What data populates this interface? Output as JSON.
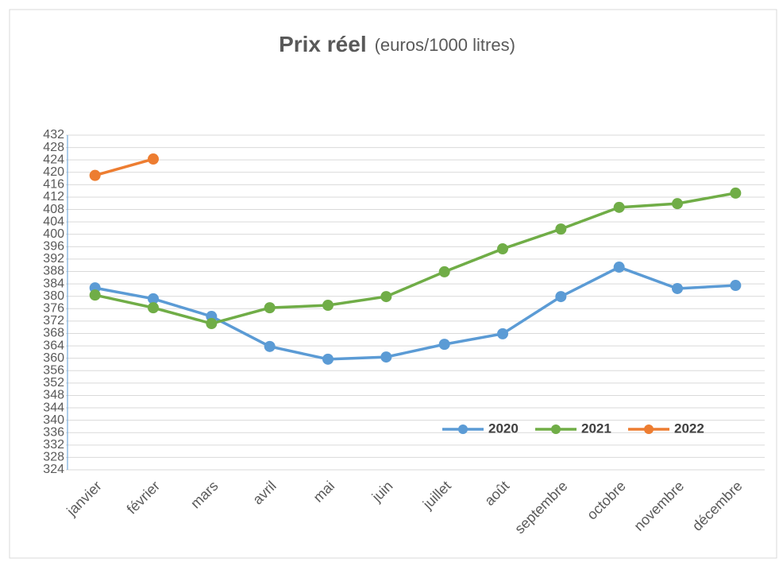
{
  "chart_data": {
    "type": "line",
    "title": "Prix réel",
    "subtitle": "(euros/1000 litres)",
    "categories": [
      "janvier",
      "février",
      "mars",
      "avril",
      "mai",
      "juin",
      "juillet",
      "août",
      "septembre",
      "octobre",
      "novembre",
      "décembre"
    ],
    "series": [
      {
        "name": "2020",
        "color": "#5b9bd5",
        "values": [
          382.7,
          379.2,
          373.5,
          363.8,
          359.7,
          360.4,
          364.5,
          367.9,
          379.9,
          389.4,
          382.5,
          383.5
        ]
      },
      {
        "name": "2021",
        "color": "#70ad47",
        "values": [
          380.4,
          376.3,
          371.2,
          376.3,
          377.1,
          379.9,
          387.9,
          395.3,
          401.7,
          408.7,
          409.9,
          413.3
        ]
      },
      {
        "name": "2022",
        "color": "#ed7d31",
        "values": [
          419,
          424.3,
          null,
          null,
          null,
          null,
          null,
          null,
          null,
          null,
          null,
          null
        ]
      }
    ],
    "ylim": [
      324,
      432
    ],
    "yticks": [
      324,
      328,
      332,
      336,
      340,
      344,
      348,
      352,
      356,
      360,
      364,
      368,
      372,
      376,
      380,
      384,
      388,
      392,
      396,
      400,
      404,
      408,
      412,
      416,
      420,
      424,
      428,
      432
    ],
    "grid": true,
    "legend": "bottom-right"
  }
}
